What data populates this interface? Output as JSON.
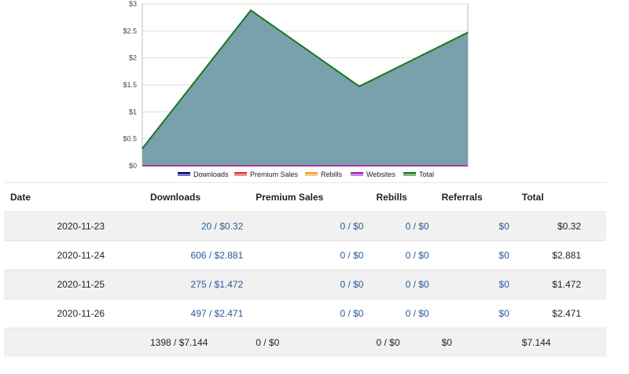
{
  "chart_data": {
    "type": "area",
    "categories": [
      "2020-11-23",
      "2020-11-24",
      "2020-11-25",
      "2020-11-26"
    ],
    "series": [
      {
        "name": "Downloads",
        "values": [
          0.32,
          2.881,
          1.472,
          2.471
        ],
        "color": "#000080"
      },
      {
        "name": "Premium Sales",
        "values": [
          0,
          0,
          0,
          0
        ],
        "color": "#e03030"
      },
      {
        "name": "Rebills",
        "values": [
          0,
          0,
          0,
          0
        ],
        "color": "#f0a020"
      },
      {
        "name": "Websites",
        "values": [
          0,
          0,
          0,
          0
        ],
        "color": "#a020c0"
      },
      {
        "name": "Total",
        "values": [
          0.32,
          2.881,
          1.472,
          2.471
        ],
        "color": "#1a7a1a"
      }
    ],
    "area_fill": "#78a1ad",
    "ylim": [
      0,
      3
    ],
    "yticks": [
      "$0",
      "$0.5",
      "$1",
      "$1.5",
      "$2",
      "$2.5",
      "$3"
    ],
    "grid": true,
    "legend_position": "bottom"
  },
  "table": {
    "headers": [
      "Date",
      "Downloads",
      "Premium Sales",
      "Rebills",
      "Referrals",
      "Total"
    ],
    "rows": [
      {
        "date": "2020-11-23",
        "downloads": "20 / $0.32",
        "premium": "0 / $0",
        "rebills": "0 / $0",
        "referrals": "$0",
        "total": "$0.32"
      },
      {
        "date": "2020-11-24",
        "downloads": "606 / $2.881",
        "premium": "0 / $0",
        "rebills": "0 / $0",
        "referrals": "$0",
        "total": "$2.881"
      },
      {
        "date": "2020-11-25",
        "downloads": "275 / $1.472",
        "premium": "0 / $0",
        "rebills": "0 / $0",
        "referrals": "$0",
        "total": "$1.472"
      },
      {
        "date": "2020-11-26",
        "downloads": "497 / $2.471",
        "premium": "0 / $0",
        "rebills": "0 / $0",
        "referrals": "$0",
        "total": "$2.471"
      }
    ],
    "totals": {
      "downloads": "1398 / $7.144",
      "premium": "0 / $0",
      "rebills": "0 / $0",
      "referrals": "$0",
      "total": "$7.144"
    }
  }
}
